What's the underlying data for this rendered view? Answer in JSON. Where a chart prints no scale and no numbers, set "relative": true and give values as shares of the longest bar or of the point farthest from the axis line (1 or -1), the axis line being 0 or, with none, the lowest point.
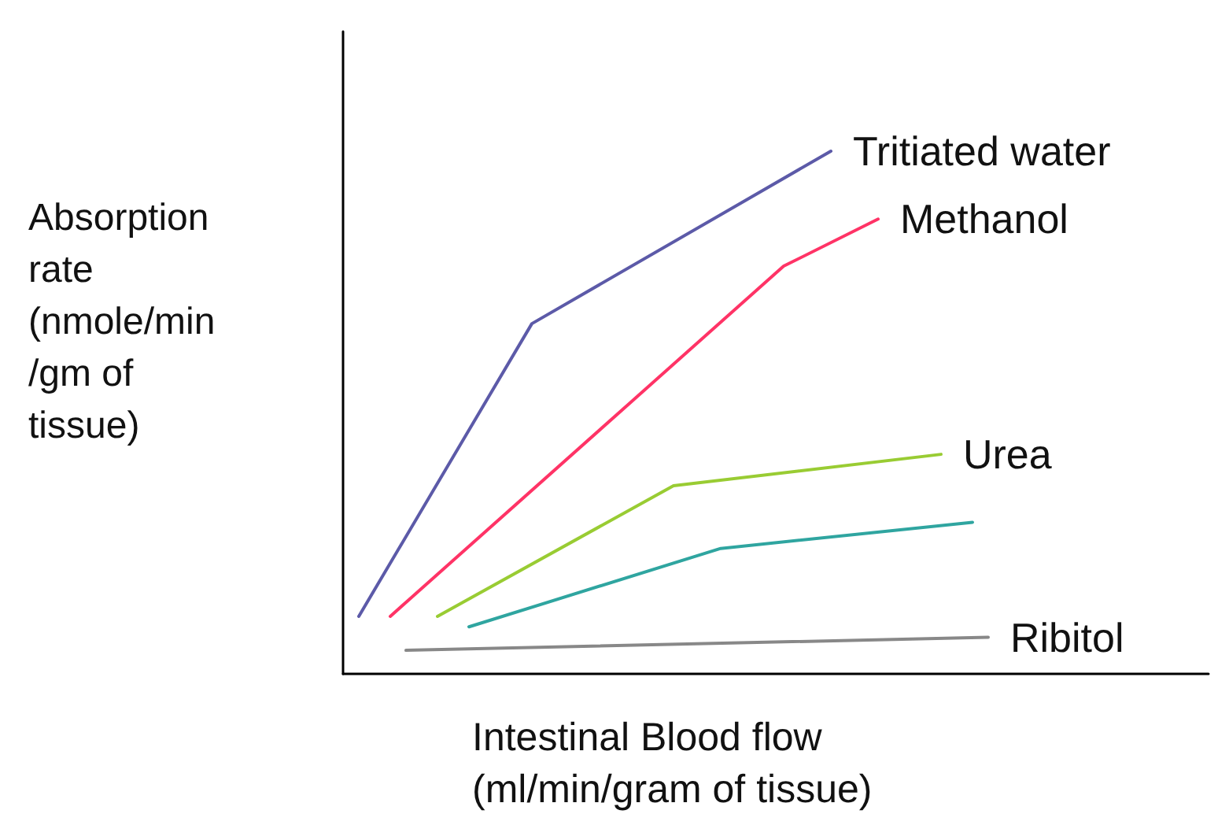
{
  "chart_data": {
    "type": "line",
    "relative": true,
    "xlabel": "Intestinal Blood flow\n(ml/min/gram of tissue)",
    "ylabel": "Absorption\nrate\n(nmole/min\n/gm of\ntissue)",
    "grid": false,
    "legend": false,
    "marker": "none",
    "categories": [
      null,
      null,
      null,
      null,
      null,
      null,
      null,
      null,
      null,
      null,
      null,
      null,
      null,
      null,
      null,
      null,
      null,
      null,
      null,
      null,
      null,
      null,
      null,
      null,
      null,
      null,
      null,
      null,
      null,
      null,
      null,
      null,
      null,
      null,
      null,
      null,
      null,
      null,
      null,
      null,
      null,
      null,
      null,
      null,
      null,
      null,
      null,
      null,
      null,
      null,
      null,
      null,
      null,
      null,
      null,
      null
    ],
    "series": [
      {
        "name": "Tritiated water",
        "color": "#5c5aa8",
        "values": [
          null,
          0.11,
          null,
          null,
          null,
          null,
          null,
          null,
          null,
          null,
          null,
          null,
          0.67,
          null,
          null,
          null,
          null,
          null,
          null,
          null,
          null,
          null,
          null,
          null,
          null,
          null,
          null,
          null,
          null,
          null,
          null,
          1.0,
          null,
          null,
          null,
          null,
          null,
          null,
          null,
          null,
          null,
          null,
          null,
          null,
          null,
          null,
          null,
          null,
          null,
          null,
          null,
          null,
          null,
          null,
          null,
          null
        ]
      },
      {
        "name": "Methanol",
        "color": "#ff3366",
        "values": [
          null,
          null,
          null,
          0.11,
          null,
          null,
          null,
          null,
          null,
          null,
          null,
          null,
          null,
          null,
          null,
          null,
          null,
          null,
          null,
          null,
          null,
          null,
          null,
          null,
          null,
          null,
          null,
          null,
          0.78,
          null,
          null,
          null,
          null,
          null,
          0.87,
          null,
          null,
          null,
          null,
          null,
          null,
          null,
          null,
          null,
          null,
          null,
          null,
          null,
          null,
          null,
          null,
          null,
          null,
          null,
          null,
          null
        ]
      },
      {
        "name": "Urea",
        "color": "#99cc33",
        "values": [
          null,
          null,
          null,
          null,
          null,
          null,
          0.11,
          null,
          null,
          null,
          null,
          null,
          null,
          null,
          null,
          null,
          null,
          null,
          null,
          null,
          null,
          0.36,
          null,
          null,
          null,
          null,
          null,
          null,
          null,
          null,
          null,
          null,
          null,
          null,
          null,
          null,
          null,
          null,
          0.42,
          null,
          null,
          null,
          null,
          null,
          null,
          null,
          null,
          null,
          null,
          null,
          null,
          null,
          null,
          null,
          null,
          null
        ]
      },
      {
        "color": "#2fa5a0",
        "values": [
          null,
          null,
          null,
          null,
          null,
          null,
          null,
          null,
          0.09,
          null,
          null,
          null,
          null,
          null,
          null,
          null,
          null,
          null,
          null,
          null,
          null,
          null,
          null,
          null,
          0.24,
          null,
          null,
          null,
          null,
          null,
          null,
          null,
          null,
          null,
          null,
          null,
          null,
          null,
          null,
          null,
          0.29,
          null,
          null,
          null,
          null,
          null,
          null,
          null,
          null,
          null,
          null,
          null,
          null,
          null,
          null,
          null
        ]
      },
      {
        "name": "Ribitol",
        "color": "#888888",
        "values": [
          null,
          null,
          null,
          null,
          0.045,
          null,
          null,
          null,
          null,
          null,
          null,
          null,
          null,
          null,
          null,
          null,
          null,
          null,
          null,
          null,
          null,
          null,
          null,
          null,
          null,
          null,
          null,
          null,
          null,
          null,
          null,
          null,
          null,
          null,
          null,
          null,
          null,
          null,
          null,
          null,
          null,
          0.07,
          null,
          null,
          null,
          null,
          null,
          null,
          null,
          null,
          null,
          null,
          null,
          null,
          null,
          null
        ]
      }
    ]
  }
}
